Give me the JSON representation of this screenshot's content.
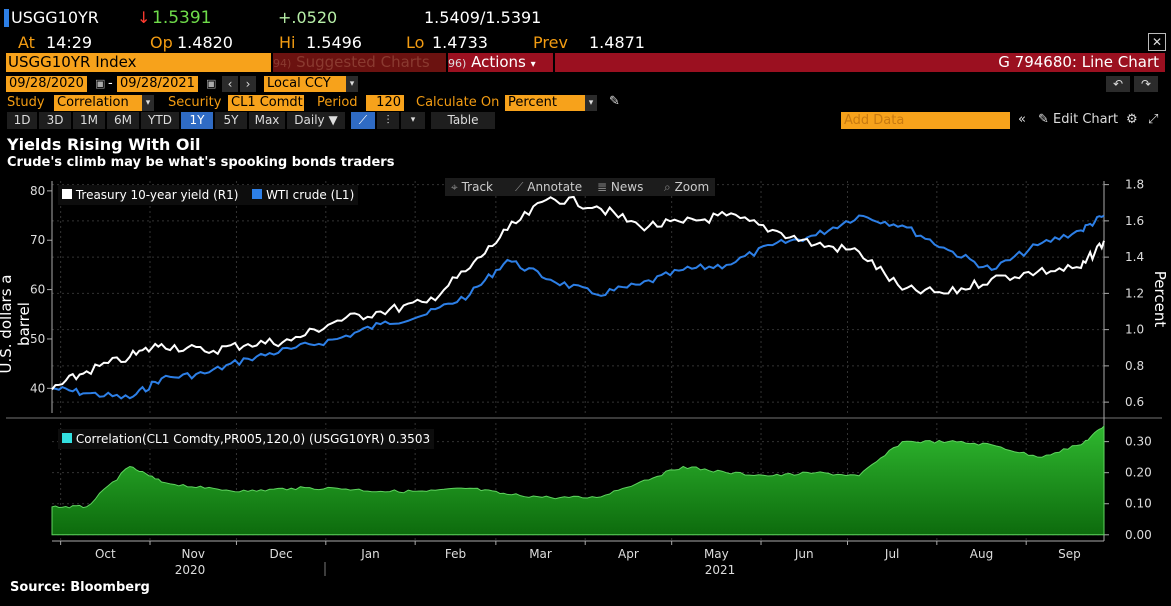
{
  "quote": {
    "ticker": "USGG10YR",
    "last": "1.5391",
    "change": "+.0520",
    "bid_ask": "1.5409/1.5391",
    "at_label": "At",
    "time": "14:29",
    "op_label": "Op",
    "open": "1.4820",
    "hi_label": "Hi",
    "high": "1.5496",
    "lo_label": "Lo",
    "low": "1.4733",
    "prev_label": "Prev",
    "prev": "1.4871"
  },
  "titlebar": {
    "security": "USGG10YR Index",
    "suggested": "Suggested Charts",
    "actions": "Actions",
    "chart_id": "G 794680: Line Chart"
  },
  "controls": {
    "date_from": "09/28/2020",
    "date_to": "09/28/2021",
    "currency": "Local CCY",
    "study_label": "Study",
    "study_value": "Correlation",
    "security_label": "Security",
    "security_value": "CL1 Comdt",
    "period_label": "Period",
    "period_value": "120",
    "calc_label": "Calculate On",
    "calc_value": "Percent",
    "ranges": [
      "1D",
      "3D",
      "1M",
      "6M",
      "YTD",
      "1Y",
      "5Y",
      "Max"
    ],
    "active_range": "1Y",
    "frequency": "Daily",
    "table_label": "Table",
    "add_data_placeholder": "Add Data",
    "edit_chart": "Edit Chart"
  },
  "chart_toolbar": {
    "track": "Track",
    "annotate": "Annotate",
    "news": "News",
    "zoom": "Zoom"
  },
  "colors": {
    "accent": "#f7a21b",
    "title_red": "#9b1020",
    "wti": "#2d7fe6",
    "treasury": "#ffffff",
    "corr_fill": "#1f9a1f",
    "corr_legend": "#33e0e0"
  },
  "chart_data": [
    {
      "type": "line",
      "title": "Yields Rising With Oil",
      "subtitle": "Crude's climb may be what's spooking bonds traders",
      "ylabel_left": "U.S. dollars a barrel",
      "ylabel_right": "Percent",
      "ylim_left": [
        35,
        82
      ],
      "ylim_right": [
        0.54,
        1.82
      ],
      "yticks_left": [
        40,
        50,
        60,
        70,
        80
      ],
      "yticks_right": [
        0.6,
        0.8,
        1.0,
        1.2,
        1.4,
        1.6,
        1.8
      ],
      "x_months": [
        "Oct",
        "Nov",
        "Dec",
        "Jan",
        "Feb",
        "Mar",
        "Apr",
        "May",
        "Jun",
        "Jul",
        "Aug",
        "Sep"
      ],
      "x_years": [
        "2020",
        "2021"
      ],
      "legend_position": "top-left",
      "grid": true,
      "x": [
        "2020-09-28",
        "2020-10-10",
        "2020-10-25",
        "2020-11-05",
        "2020-11-20",
        "2020-12-05",
        "2020-12-20",
        "2021-01-05",
        "2021-01-20",
        "2021-02-05",
        "2021-02-20",
        "2021-03-05",
        "2021-03-20",
        "2021-04-05",
        "2021-04-20",
        "2021-05-05",
        "2021-05-20",
        "2021-06-05",
        "2021-06-20",
        "2021-07-05",
        "2021-07-20",
        "2021-08-05",
        "2021-08-20",
        "2021-09-05",
        "2021-09-20",
        "2021-09-28"
      ],
      "series": [
        {
          "name": "Treasury 10-year yield (R1)",
          "axis": "right",
          "values": [
            0.67,
            0.77,
            0.85,
            0.92,
            0.88,
            0.92,
            0.94,
            1.05,
            1.1,
            1.15,
            1.34,
            1.55,
            1.73,
            1.68,
            1.57,
            1.59,
            1.63,
            1.55,
            1.47,
            1.43,
            1.22,
            1.2,
            1.28,
            1.32,
            1.34,
            1.49
          ]
        },
        {
          "name": "WTI crude (L1)",
          "axis": "left",
          "values": [
            40,
            39,
            38,
            42,
            43,
            46,
            48,
            50,
            53,
            55,
            59,
            66,
            62,
            59,
            61,
            64,
            65,
            69,
            71,
            75,
            73,
            68,
            64,
            69,
            72,
            75
          ]
        }
      ]
    },
    {
      "type": "area",
      "legend": "Correlation(CL1 Comdty,PR005,120,0) (USGG10YR) 0.3503",
      "ylim": [
        -0.02,
        0.36
      ],
      "yticks": [
        "0.30",
        "0.20",
        "0.10",
        "0.00"
      ],
      "x": [
        "2020-09-28",
        "2020-10-10",
        "2020-10-25",
        "2020-11-05",
        "2020-11-20",
        "2020-12-05",
        "2020-12-20",
        "2021-01-05",
        "2021-01-20",
        "2021-02-05",
        "2021-02-20",
        "2021-03-05",
        "2021-03-20",
        "2021-04-05",
        "2021-04-20",
        "2021-05-05",
        "2021-05-20",
        "2021-06-05",
        "2021-06-20",
        "2021-07-05",
        "2021-07-20",
        "2021-08-05",
        "2021-08-20",
        "2021-09-05",
        "2021-09-20",
        "2021-09-28"
      ],
      "series": [
        {
          "values": [
            0.09,
            0.09,
            0.22,
            0.17,
            0.15,
            0.14,
            0.15,
            0.15,
            0.14,
            0.14,
            0.15,
            0.13,
            0.12,
            0.12,
            0.17,
            0.22,
            0.2,
            0.19,
            0.2,
            0.19,
            0.3,
            0.3,
            0.29,
            0.25,
            0.29,
            0.35
          ]
        }
      ]
    }
  ],
  "source": "Source:  Bloomberg"
}
